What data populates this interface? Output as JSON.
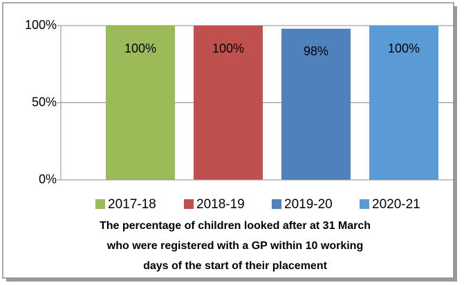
{
  "chart_data": {
    "type": "bar",
    "title": [
      "The percentage of children looked after at 31 March",
      "who were registered with a GP within 10 working",
      "days of the start of their placement"
    ],
    "series": [
      {
        "name": "2017-18",
        "color": "#9bbb59",
        "values": [
          100
        ],
        "value_labels": [
          "100%"
        ]
      },
      {
        "name": "2018-19",
        "color": "#c0504d",
        "values": [
          100
        ],
        "value_labels": [
          "100%"
        ]
      },
      {
        "name": "2019-20",
        "color": "#4f81bd",
        "values": [
          98
        ],
        "value_labels": [
          "98%"
        ]
      },
      {
        "name": "2020-21",
        "color": "#5b9bd5",
        "values": [
          100
        ],
        "value_labels": [
          "100%"
        ]
      }
    ],
    "ylim": [
      0,
      100
    ],
    "yticks": [
      {
        "value": 0,
        "label": "0%"
      },
      {
        "value": 50,
        "label": "50%"
      },
      {
        "value": 100,
        "label": "100%"
      }
    ],
    "grid": true,
    "legend": "bottom"
  }
}
